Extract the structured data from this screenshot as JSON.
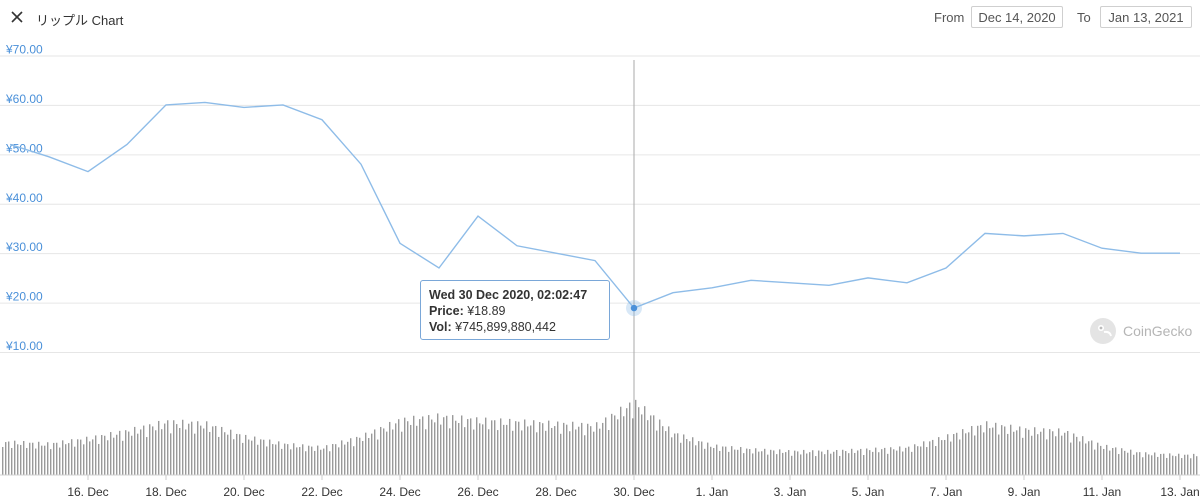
{
  "header": {
    "title": "リップル Chart",
    "from_label": "From",
    "from_value": "Dec 14, 2020",
    "to_label": "To",
    "to_value": "Jan 13, 2021"
  },
  "tooltip": {
    "date": "Wed 30 Dec 2020, 02:02:47",
    "price_label": "Price:",
    "price_value": "¥18.89",
    "vol_label": "Vol:",
    "vol_value": "¥745,899,880,442"
  },
  "watermark": {
    "text": "CoinGecko"
  },
  "colors": {
    "line": "#8ebce8",
    "ytick": "#4a90d9",
    "volume": "#9a9a9a",
    "grid": "#e6e6e6",
    "crosshair": "#aaaaaa"
  },
  "chart_data": [
    {
      "type": "line",
      "series": [
        {
          "x": [
            "2020-12-14",
            "2020-12-15",
            "2020-12-16",
            "2020-12-17",
            "2020-12-18",
            "2020-12-19",
            "2020-12-20",
            "2020-12-21",
            "2020-12-22",
            "2020-12-23",
            "2020-12-24",
            "2020-12-25",
            "2020-12-26",
            "2020-12-27",
            "2020-12-28",
            "2020-12-29",
            "2020-12-30",
            "2020-12-31",
            "2021-01-01",
            "2021-01-02",
            "2021-01-03",
            "2021-01-04",
            "2021-01-05",
            "2021-01-06",
            "2021-01-07",
            "2021-01-08",
            "2021-01-09",
            "2021-01-10",
            "2021-01-11",
            "2021-01-12",
            "2021-01-13"
          ],
          "values": [
            52.0,
            49.5,
            46.5,
            52.0,
            60.0,
            60.5,
            59.5,
            60.0,
            57.0,
            48.0,
            32.0,
            27.0,
            37.5,
            31.5,
            30.0,
            28.5,
            18.89,
            22.0,
            23.0,
            24.5,
            24.0,
            23.5,
            25.0,
            24.0,
            27.0,
            34.0,
            33.5,
            34.0,
            31.0,
            30.0,
            30.0
          ]
        }
      ],
      "y_ticks": [
        "¥10.00",
        "¥20.00",
        "¥30.00",
        "¥40.00",
        "¥50.00",
        "¥60.00",
        "¥70.00"
      ],
      "ylim": [
        10,
        70
      ],
      "grid": true
    },
    {
      "type": "bar",
      "x": [
        "2020-12-14",
        "2020-12-15",
        "2020-12-16",
        "2020-12-17",
        "2020-12-18",
        "2020-12-19",
        "2020-12-20",
        "2020-12-21",
        "2020-12-22",
        "2020-12-23",
        "2020-12-24",
        "2020-12-25",
        "2020-12-26",
        "2020-12-27",
        "2020-12-28",
        "2020-12-29",
        "2020-12-30",
        "2020-12-31",
        "2021-01-01",
        "2021-01-02",
        "2021-01-03",
        "2021-01-04",
        "2021-01-05",
        "2021-01-06",
        "2021-01-07",
        "2021-01-08",
        "2021-01-09",
        "2021-01-10",
        "2021-01-11",
        "2021-01-12",
        "2021-01-13"
      ],
      "values": [
        0.18,
        0.17,
        0.2,
        0.24,
        0.29,
        0.28,
        0.21,
        0.17,
        0.15,
        0.21,
        0.3,
        0.32,
        0.3,
        0.29,
        0.28,
        0.27,
        0.4,
        0.23,
        0.16,
        0.14,
        0.13,
        0.13,
        0.14,
        0.15,
        0.21,
        0.28,
        0.25,
        0.24,
        0.16,
        0.12,
        0.11
      ]
    }
  ],
  "x_ticks": [
    "16. Dec",
    "18. Dec",
    "20. Dec",
    "22. Dec",
    "24. Dec",
    "26. Dec",
    "28. Dec",
    "30. Dec",
    "1. Jan",
    "3. Jan",
    "5. Jan",
    "7. Jan",
    "9. Jan",
    "11. Jan",
    "13. Jan"
  ]
}
